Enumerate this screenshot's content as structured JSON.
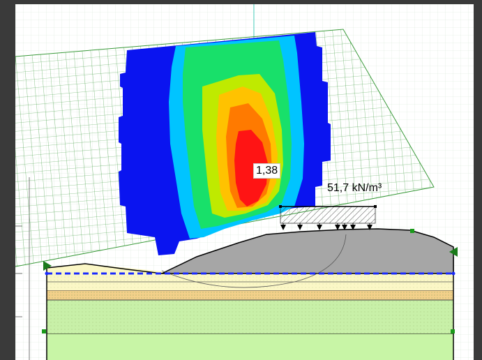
{
  "window": {
    "background": "#3a3a3a",
    "canvas_background": "#ffffff"
  },
  "results": {
    "safety_factor_label": "1,38",
    "surcharge_label": "51,7 kN/m³"
  },
  "legend_colors": {
    "contour_low": "#0000ff",
    "contour_mid_low": "#00c8ff",
    "contour_mid": "#00e676",
    "contour_mid_high": "#c6f000",
    "contour_high": "#ffc400",
    "contour_higher": "#ff7a00",
    "contour_max": "#ff1a1a",
    "grid_lines": "#3a9a3a",
    "embankment": "#a6a6a6",
    "water_table": "#1a2aff",
    "soil_layer_top": "#fbf7c6",
    "soil_layer_sand": "#f3d08a",
    "soil_layer_clay": "#c8f0a8",
    "soil_layer_base": "#c8f5a6"
  }
}
